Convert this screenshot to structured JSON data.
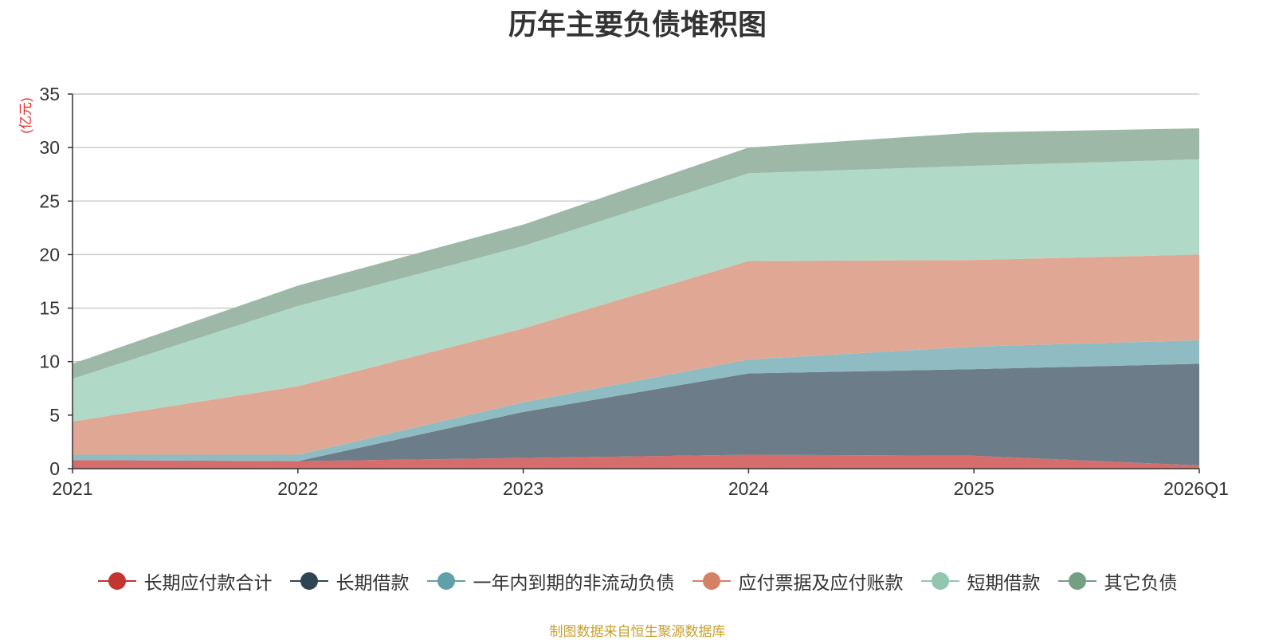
{
  "chart_data": {
    "type": "area",
    "stacked": true,
    "title": "历年主要负债堆积图",
    "ylabel": "(亿元)",
    "xlabel": "",
    "categories": [
      "2021",
      "2022",
      "2023",
      "2024",
      "2025",
      "2026Q1"
    ],
    "ylim": [
      0,
      35
    ],
    "yticks": [
      0,
      5,
      10,
      15,
      20,
      25,
      30,
      35
    ],
    "grid": true,
    "legend_position": "bottom",
    "series": [
      {
        "name": "长期应付款合计",
        "color": "#c23531",
        "fill": "#d46d6b",
        "values": [
          0.8,
          0.7,
          1.0,
          1.3,
          1.2,
          0.3
        ]
      },
      {
        "name": "长期借款",
        "color": "#2f4554",
        "fill": "#6d7c89",
        "values": [
          0.0,
          0.0,
          4.3,
          7.6,
          8.1,
          9.5
        ]
      },
      {
        "name": "一年内到期的非流动负债",
        "color": "#61a0a8",
        "fill": "#8fbcc2",
        "values": [
          0.5,
          0.6,
          0.9,
          1.3,
          2.1,
          2.2
        ]
      },
      {
        "name": "应付票据及应付账款",
        "color": "#d48265",
        "fill": "#e0a894",
        "values": [
          3.1,
          6.4,
          6.9,
          9.2,
          8.1,
          8.0
        ]
      },
      {
        "name": "短期借款",
        "color": "#91c7ae",
        "fill": "#b1d9c7",
        "values": [
          4.0,
          7.5,
          7.7,
          8.2,
          8.8,
          8.9
        ]
      },
      {
        "name": "其它负债",
        "color": "#749f83",
        "fill": "#9db8a7",
        "values": [
          1.4,
          1.9,
          2.0,
          2.4,
          3.1,
          2.9
        ]
      }
    ]
  },
  "source_note": "制图数据来自恒生聚源数据库"
}
